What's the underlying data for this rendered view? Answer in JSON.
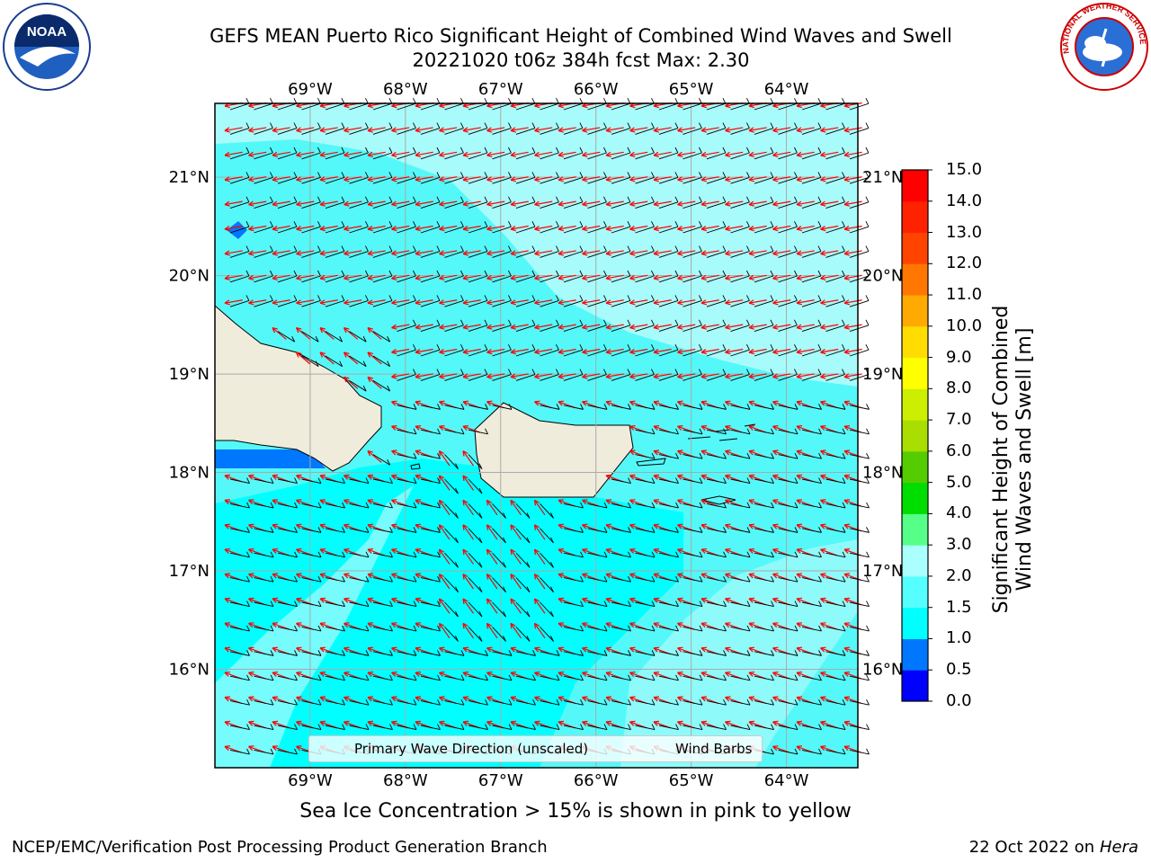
{
  "header": {
    "title_line1": "GEFS MEAN Puerto Rico Significant Height of Combined Wind Waves and Swell",
    "title_line2": "20221020 t06z 384h fcst   Max: 2.30"
  },
  "logos": {
    "left": {
      "text": "NOAA",
      "ring_text": "NATIONAL OCEANIC AND ATMOSPHERIC ADMINISTRATION · U.S. DEPARTMENT OF COMMERCE"
    },
    "right": {
      "ring_text": "NATIONAL WEATHER SERVICE"
    }
  },
  "map": {
    "lon_labels": [
      "69°W",
      "68°W",
      "67°W",
      "66°W",
      "65°W",
      "64°W"
    ],
    "lat_labels": [
      "21°N",
      "20°N",
      "19°N",
      "18°N",
      "17°N",
      "16°N"
    ],
    "lon_range": [
      -70,
      -63.25
    ],
    "lat_range": [
      15,
      21.75
    ],
    "legend": {
      "wave_label": "Primary Wave Direction (unscaled)",
      "wind_label": "Wind Barbs"
    }
  },
  "colorbar": {
    "title": "Significant Height of Combined Wind Waves and Swell [m]",
    "title_line1": "Significant Height of Combined",
    "title_line2": "Wind Waves and Swell [m]",
    "ticks": [
      "0.0",
      "0.5",
      "1.0",
      "1.5",
      "2.0",
      "3.0",
      "4.0",
      "5.0",
      "6.0",
      "7.0",
      "8.0",
      "9.0",
      "10.0",
      "11.0",
      "12.0",
      "13.0",
      "14.0",
      "15.0"
    ],
    "colors": [
      "#0000ff",
      "#0077ff",
      "#00ffff",
      "#55ffff",
      "#aaffff",
      "#55ff88",
      "#00dd00",
      "#55cc00",
      "#aadd00",
      "#ccee00",
      "#ffff00",
      "#ffdd00",
      "#ffaa00",
      "#ff7700",
      "#ff4400",
      "#ff2200",
      "#ff0000"
    ]
  },
  "colors": {
    "land": "#efecdc",
    "sea_high": "#a8fbfb",
    "sea_mid": "#55f8f8",
    "sea_low": "#00ffff",
    "wave_arrow": "#ff0000",
    "wind_barb": "#000000"
  },
  "notes": {
    "sea_ice": "Sea Ice Concentration > 15% is shown in pink to yellow"
  },
  "footer": {
    "left": "NCEP/EMC/Verification Post Processing Product Generation Branch",
    "right_prefix": "22 Oct 2022 on ",
    "right_host": "Hera"
  }
}
